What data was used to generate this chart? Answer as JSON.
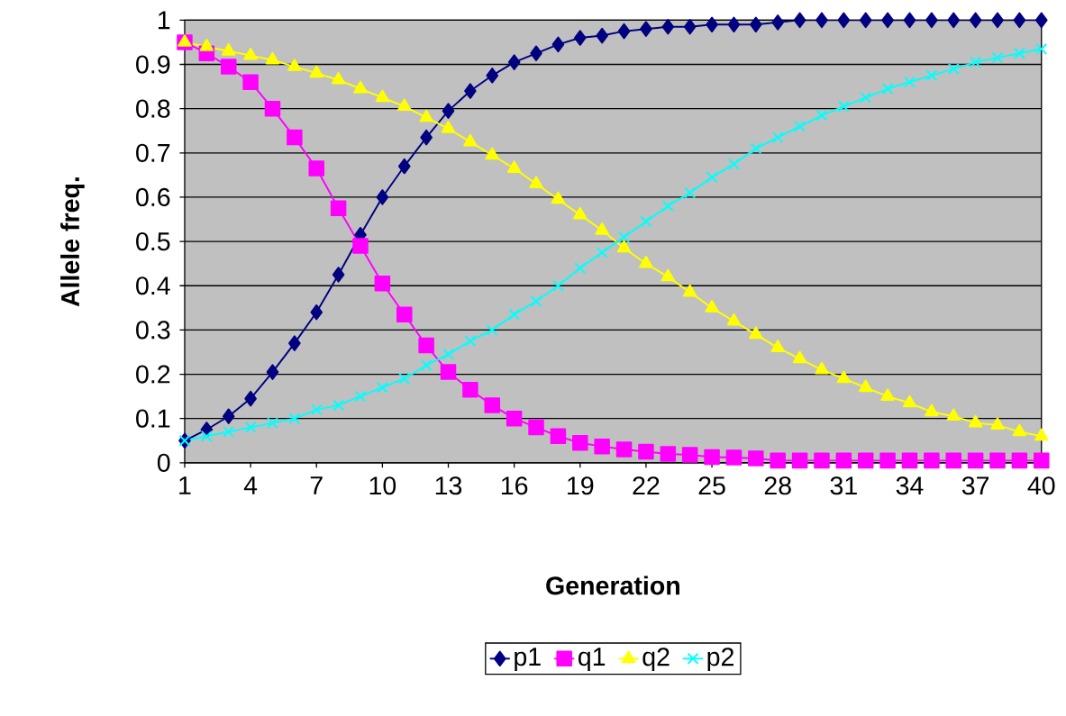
{
  "chart_data": {
    "type": "line",
    "xlabel": "Generation",
    "ylabel": "Allele freq.",
    "x": [
      1,
      2,
      3,
      4,
      5,
      6,
      7,
      8,
      9,
      10,
      11,
      12,
      13,
      14,
      15,
      16,
      17,
      18,
      19,
      20,
      21,
      22,
      23,
      24,
      25,
      26,
      27,
      28,
      29,
      30,
      31,
      32,
      33,
      34,
      35,
      36,
      37,
      38,
      39,
      40
    ],
    "xlim": [
      1,
      40
    ],
    "xticks": [
      1,
      4,
      7,
      10,
      13,
      16,
      19,
      22,
      25,
      28,
      31,
      34,
      37,
      40
    ],
    "ylim": [
      0,
      1
    ],
    "yticks": [
      0,
      0.1,
      0.2,
      0.3,
      0.4,
      0.5,
      0.6,
      0.7,
      0.8,
      0.9,
      1
    ],
    "grid": "y",
    "legend": "bottom",
    "series": [
      {
        "name": "p1",
        "color": "#000080",
        "marker": "diamond",
        "values": [
          0.05,
          0.075,
          0.105,
          0.145,
          0.205,
          0.27,
          0.34,
          0.425,
          0.515,
          0.6,
          0.67,
          0.735,
          0.795,
          0.84,
          0.875,
          0.905,
          0.925,
          0.945,
          0.96,
          0.965,
          0.975,
          0.98,
          0.985,
          0.985,
          0.99,
          0.99,
          0.99,
          0.995,
          1,
          1,
          1,
          1,
          1,
          1,
          1,
          1,
          1,
          1,
          1,
          1
        ]
      },
      {
        "name": "q1",
        "color": "#ff00ff",
        "marker": "square",
        "values": [
          0.95,
          0.925,
          0.895,
          0.86,
          0.8,
          0.735,
          0.665,
          0.575,
          0.49,
          0.405,
          0.335,
          0.265,
          0.205,
          0.165,
          0.13,
          0.1,
          0.08,
          0.06,
          0.045,
          0.037,
          0.03,
          0.025,
          0.02,
          0.018,
          0.013,
          0.012,
          0.01,
          0.005,
          0.005,
          0.005,
          0.005,
          0.005,
          0.005,
          0.005,
          0.005,
          0.005,
          0.005,
          0.005,
          0.005,
          0.005
        ]
      },
      {
        "name": "q2",
        "color": "#ffff00",
        "marker": "triangle",
        "values": [
          0.95,
          0.94,
          0.93,
          0.92,
          0.91,
          0.895,
          0.88,
          0.865,
          0.845,
          0.825,
          0.805,
          0.78,
          0.755,
          0.725,
          0.695,
          0.665,
          0.63,
          0.595,
          0.56,
          0.525,
          0.485,
          0.45,
          0.42,
          0.385,
          0.35,
          0.32,
          0.29,
          0.26,
          0.235,
          0.21,
          0.19,
          0.17,
          0.15,
          0.135,
          0.115,
          0.105,
          0.09,
          0.085,
          0.07,
          0.06
        ]
      },
      {
        "name": "p2",
        "color": "#00ffff",
        "marker": "cross",
        "values": [
          0.05,
          0.06,
          0.07,
          0.08,
          0.09,
          0.1,
          0.12,
          0.13,
          0.15,
          0.17,
          0.19,
          0.22,
          0.245,
          0.275,
          0.3,
          0.335,
          0.365,
          0.4,
          0.44,
          0.475,
          0.51,
          0.545,
          0.58,
          0.61,
          0.645,
          0.675,
          0.71,
          0.735,
          0.76,
          0.785,
          0.805,
          0.825,
          0.845,
          0.86,
          0.875,
          0.89,
          0.905,
          0.915,
          0.925,
          0.935
        ]
      }
    ]
  }
}
